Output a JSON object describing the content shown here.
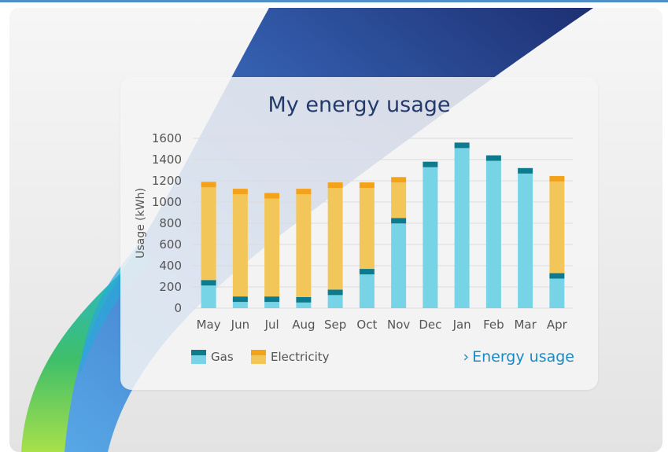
{
  "card": {
    "title": "My energy usage",
    "link_label": "Energy usage",
    "link_icon": "chevron-right-icon"
  },
  "legend": [
    {
      "label": "Gas",
      "color": "#76d4e6",
      "cap_color": "#0d7a8e"
    },
    {
      "label": "Electricity",
      "color": "#f3c65a",
      "cap_color": "#f5a21b"
    }
  ],
  "chart_data": {
    "type": "bar",
    "stacked": true,
    "title": "My energy usage",
    "xlabel": "",
    "ylabel": "Usage (kWh)",
    "ylim": [
      0,
      1600
    ],
    "yticks": [
      0,
      200,
      400,
      600,
      800,
      1000,
      1200,
      1400,
      1600
    ],
    "grid": true,
    "legend_position": "bottom-left",
    "categories": [
      "May",
      "Jun",
      "Jul",
      "Aug",
      "Sep",
      "Oct",
      "Nov",
      "Dec",
      "Jan",
      "Feb",
      "Mar",
      "Apr"
    ],
    "series": [
      {
        "name": "Gas",
        "color": "#76d4e6",
        "cap_color": "#0d7a8e",
        "values": [
          265,
          110,
          110,
          105,
          175,
          370,
          850,
          1380,
          1560,
          1440,
          1320,
          330
        ]
      },
      {
        "name": "Electricity",
        "color": "#f3c65a",
        "cap_color": "#f5a21b",
        "values": [
          925,
          1015,
          975,
          1020,
          1010,
          815,
          385,
          0,
          0,
          0,
          0,
          915
        ]
      }
    ]
  }
}
